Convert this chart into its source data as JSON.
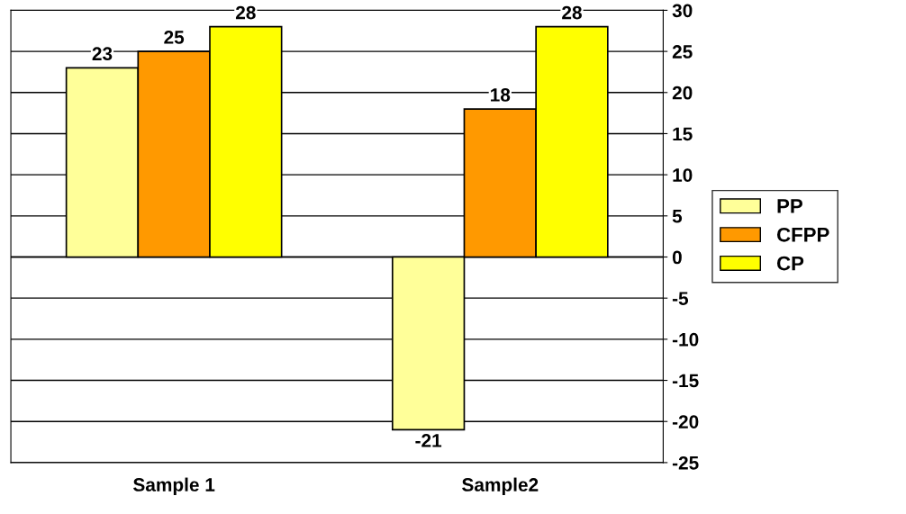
{
  "chart_data": {
    "type": "bar",
    "categories": [
      "Sample 1",
      "Sample2"
    ],
    "series": [
      {
        "name": "PP",
        "color": "#ffff99",
        "values": [
          23,
          -21
        ]
      },
      {
        "name": "CFPP",
        "color": "#ff9900",
        "values": [
          25,
          18
        ]
      },
      {
        "name": "CP",
        "color": "#ffff00",
        "values": [
          28,
          28
        ]
      }
    ],
    "ylim": [
      -25,
      30
    ],
    "yticks": [
      -25,
      -20,
      -15,
      -10,
      -5,
      0,
      5,
      10,
      15,
      20,
      25,
      30
    ],
    "grid": "y",
    "legend": "right",
    "data_labels": true
  }
}
